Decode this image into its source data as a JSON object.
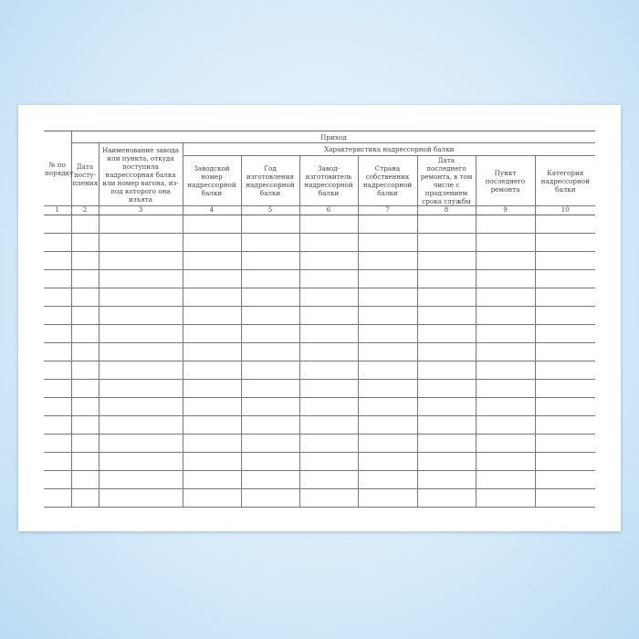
{
  "header": {
    "col1": "№ по порядку",
    "col2": "Дата посту-пления",
    "col3": "Наименование завода или пункта, откуда поступила надрессорная балка или номер вагона, из-под которого она изъята",
    "group_main": "Приход",
    "group_sub": "Характеристика надрессорной балки",
    "col4": "Заводской номер надрессорной балки",
    "col5": "Год изготовления надрессорной балки",
    "col6": "Завод-изготовитель надрессорной балки",
    "col7": "Страна собственник надрессорной балки",
    "col8": "Дата последнего ремонта, в том числе с продлением срока службы",
    "col9": "Пункт последнего ремонта",
    "col10": "Категория надрессорной балки"
  },
  "column_numbers": [
    "1",
    "2",
    "3",
    "4",
    "5",
    "6",
    "7",
    "8",
    "9",
    "10"
  ],
  "empty_rows": 16
}
